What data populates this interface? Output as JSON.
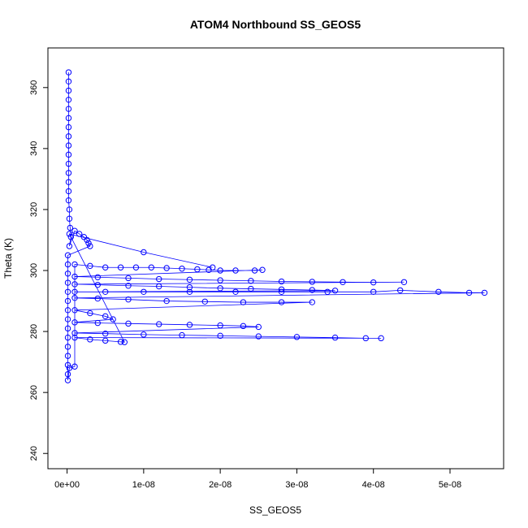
{
  "chart_data": {
    "type": "scatter",
    "title": "ATOM4 Northbound SS_GEOS5",
    "xlabel": "SS_GEOS5",
    "ylabel": "Theta (K)",
    "xlim": [
      -2.5e-09,
      5.7e-08
    ],
    "ylim": [
      235,
      373
    ],
    "xticks": [
      0,
      1e-08,
      2e-08,
      3e-08,
      4e-08,
      5e-08
    ],
    "xtick_labels": [
      "0e+00",
      "1e-08",
      "2e-08",
      "3e-08",
      "4e-08",
      "5e-08"
    ],
    "yticks": [
      240,
      260,
      280,
      300,
      320,
      340,
      360
    ],
    "ytick_labels": [
      "240",
      "260",
      "280",
      "300",
      "320",
      "340",
      "360"
    ],
    "grid": false,
    "marker": "open-circle",
    "color": "#0000ff",
    "series": [
      {
        "values_note_free": true,
        "points": [
          [
            2e-10,
            365
          ],
          [
            2e-10,
            362
          ],
          [
            2e-10,
            359
          ],
          [
            2e-10,
            356
          ],
          [
            2e-10,
            353
          ],
          [
            2e-10,
            350
          ],
          [
            2e-10,
            347
          ],
          [
            2e-10,
            344
          ],
          [
            2e-10,
            341
          ],
          [
            2e-10,
            338
          ],
          [
            2e-10,
            335
          ],
          [
            2e-10,
            332
          ],
          [
            2e-10,
            329
          ],
          [
            2e-10,
            326
          ],
          [
            2e-10,
            323
          ],
          [
            3e-10,
            320
          ],
          [
            3e-10,
            317
          ],
          [
            4e-10,
            314
          ],
          [
            5e-10,
            311
          ],
          [
            3e-10,
            308
          ],
          [
            1e-09,
            313
          ],
          [
            1.6e-09,
            312
          ],
          [
            2.2e-09,
            311
          ],
          [
            2.6e-09,
            310
          ],
          [
            2.8e-09,
            309
          ],
          [
            3e-09,
            308
          ],
          [
            1e-10,
            305
          ],
          [
            1e-10,
            302
          ],
          [
            1e-10,
            299
          ],
          [
            1e-10,
            296
          ],
          [
            1e-10,
            293
          ],
          [
            1e-10,
            290
          ],
          [
            1e-10,
            287
          ],
          [
            1e-10,
            284
          ],
          [
            1e-10,
            281
          ],
          [
            1e-10,
            278
          ],
          [
            1e-10,
            275
          ],
          [
            1e-10,
            272
          ],
          [
            1e-10,
            269
          ],
          [
            1e-10,
            266
          ],
          [
            1e-10,
            264
          ],
          [
            3e-10,
            268
          ],
          [
            1e-09,
            268.5
          ],
          [
            1e-09,
            302
          ],
          [
            3e-09,
            301.5
          ],
          [
            5e-09,
            301
          ],
          [
            7e-09,
            301
          ],
          [
            9e-09,
            301
          ],
          [
            1.1e-08,
            301
          ],
          [
            1.3e-08,
            300.8
          ],
          [
            1.5e-08,
            300.6
          ],
          [
            1.7e-08,
            300.4
          ],
          [
            1.85e-08,
            300.2
          ],
          [
            2e-08,
            300
          ],
          [
            2.2e-08,
            300
          ],
          [
            2.45e-08,
            300
          ],
          [
            2.55e-08,
            300.2
          ],
          [
            1e-09,
            298
          ],
          [
            4e-09,
            297.8
          ],
          [
            8e-09,
            297.5
          ],
          [
            1.2e-08,
            297.2
          ],
          [
            1.6e-08,
            297
          ],
          [
            2e-08,
            296.8
          ],
          [
            2.4e-08,
            296.6
          ],
          [
            2.8e-08,
            296.4
          ],
          [
            3.2e-08,
            296.3
          ],
          [
            3.6e-08,
            296.2
          ],
          [
            4e-08,
            296.1
          ],
          [
            4.4e-08,
            296.2
          ],
          [
            1e-09,
            295.5
          ],
          [
            4e-09,
            295.3
          ],
          [
            8e-09,
            295
          ],
          [
            1.2e-08,
            294.8
          ],
          [
            1.6e-08,
            294.5
          ],
          [
            2e-08,
            294.2
          ],
          [
            2.4e-08,
            294
          ],
          [
            2.8e-08,
            293.8
          ],
          [
            3.2e-08,
            293.6
          ],
          [
            3.5e-08,
            293.4
          ],
          [
            1e-09,
            293
          ],
          [
            5e-09,
            293
          ],
          [
            1e-08,
            293
          ],
          [
            1.6e-08,
            293
          ],
          [
            2.2e-08,
            293
          ],
          [
            2.8e-08,
            293
          ],
          [
            3.4e-08,
            293
          ],
          [
            4e-08,
            293
          ],
          [
            4.35e-08,
            293.5
          ],
          [
            4.85e-08,
            293
          ],
          [
            5.25e-08,
            292.7
          ],
          [
            5.45e-08,
            292.7
          ],
          [
            1e-09,
            291
          ],
          [
            4e-09,
            290.8
          ],
          [
            8e-09,
            290.5
          ],
          [
            1.3e-08,
            290
          ],
          [
            1.8e-08,
            289.8
          ],
          [
            2.3e-08,
            289.6
          ],
          [
            2.8e-08,
            289.6
          ],
          [
            3.2e-08,
            289.6
          ],
          [
            1e-09,
            287
          ],
          [
            3e-09,
            286
          ],
          [
            5e-09,
            285
          ],
          [
            6e-09,
            284
          ],
          [
            1e-09,
            283
          ],
          [
            4e-09,
            282.8
          ],
          [
            8e-09,
            282.6
          ],
          [
            1.2e-08,
            282.4
          ],
          [
            1.6e-08,
            282.2
          ],
          [
            2e-08,
            282
          ],
          [
            2.3e-08,
            281.8
          ],
          [
            2.5e-08,
            281.5
          ],
          [
            1e-09,
            279.5
          ],
          [
            5e-09,
            279.3
          ],
          [
            1e-08,
            279
          ],
          [
            1.5e-08,
            278.8
          ],
          [
            2e-08,
            278.6
          ],
          [
            2.5e-08,
            278.4
          ],
          [
            3e-08,
            278.2
          ],
          [
            3.5e-08,
            278
          ],
          [
            3.9e-08,
            277.8
          ],
          [
            4.1e-08,
            277.8
          ],
          [
            1e-09,
            278
          ],
          [
            3e-09,
            277.4
          ],
          [
            5e-09,
            277
          ],
          [
            7e-09,
            276.6
          ],
          [
            7.5e-09,
            276.5
          ],
          [
            3e-10,
            312
          ],
          [
            1e-08,
            306
          ],
          [
            1.9e-08,
            301
          ]
        ]
      }
    ]
  }
}
